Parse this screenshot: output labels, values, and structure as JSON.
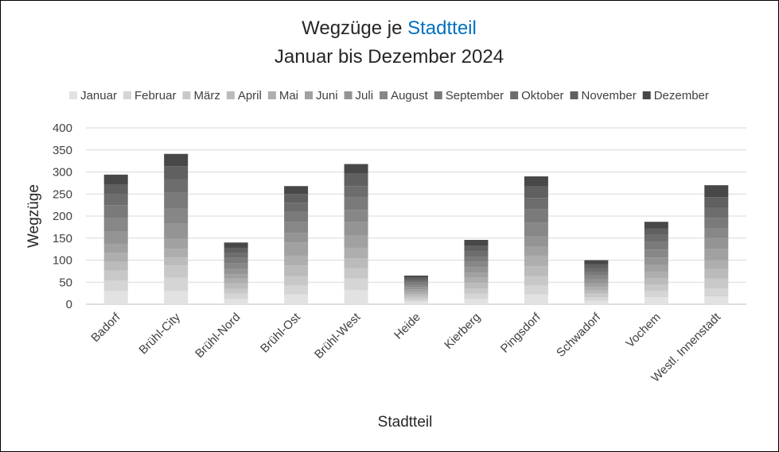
{
  "chart_data": {
    "type": "bar",
    "stacked": true,
    "title": {
      "prefix": "Wegzüge je ",
      "highlight": "Stadtteil",
      "line2": "Januar bis Dezember 2024",
      "highlight_color": "#0070c0"
    },
    "xlabel": "Stadtteil",
    "ylabel": "Wegzüge",
    "ylim": [
      0,
      400
    ],
    "yticks": [
      0,
      50,
      100,
      150,
      200,
      250,
      300,
      350,
      400
    ],
    "grid": true,
    "legend_position": "top",
    "categories": [
      "Badorf",
      "Brühl-City",
      "Brühl-Nord",
      "Brühl-Ost",
      "Brühl-West",
      "Heide",
      "Kierberg",
      "Pingsdorf",
      "Schwadorf",
      "Vochem",
      "Westl. Innenstadt"
    ],
    "series": [
      {
        "name": "Januar",
        "color": "#e2e2e2",
        "values": [
          30,
          30,
          12,
          22,
          32,
          6,
          12,
          22,
          8,
          16,
          18
        ]
      },
      {
        "name": "Februar",
        "color": "#d5d5d5",
        "values": [
          24,
          30,
          12,
          20,
          26,
          5,
          12,
          20,
          8,
          14,
          18
        ]
      },
      {
        "name": "März",
        "color": "#c8c8c8",
        "values": [
          22,
          28,
          11,
          22,
          24,
          6,
          12,
          22,
          8,
          15,
          22
        ]
      },
      {
        "name": "April",
        "color": "#bbbbbb",
        "values": [
          20,
          18,
          12,
          24,
          22,
          5,
          12,
          22,
          7,
          14,
          22
        ]
      },
      {
        "name": "Mai",
        "color": "#aeaeae",
        "values": [
          21,
          20,
          11,
          22,
          24,
          6,
          12,
          24,
          8,
          15,
          20
        ]
      },
      {
        "name": "Juni",
        "color": "#a1a1a1",
        "values": [
          20,
          22,
          10,
          30,
          28,
          5,
          12,
          20,
          8,
          15,
          25
        ]
      },
      {
        "name": "Juli",
        "color": "#949494",
        "values": [
          28,
          35,
          12,
          22,
          30,
          6,
          12,
          25,
          9,
          17,
          25
        ]
      },
      {
        "name": "August",
        "color": "#878787",
        "values": [
          30,
          35,
          13,
          24,
          28,
          6,
          12,
          30,
          9,
          18,
          23
        ]
      },
      {
        "name": "September",
        "color": "#7a7a7a",
        "values": [
          30,
          35,
          12,
          24,
          28,
          5,
          12,
          30,
          8,
          17,
          22
        ]
      },
      {
        "name": "Oktober",
        "color": "#6d6d6d",
        "values": [
          24,
          30,
          12,
          20,
          26,
          5,
          12,
          26,
          9,
          16,
          24
        ]
      },
      {
        "name": "November",
        "color": "#606060",
        "values": [
          23,
          30,
          11,
          20,
          28,
          5,
          12,
          26,
          9,
          15,
          24
        ]
      },
      {
        "name": "Dezember",
        "color": "#484848",
        "values": [
          22,
          28,
          12,
          18,
          22,
          5,
          14,
          23,
          9,
          15,
          27
        ]
      }
    ]
  }
}
